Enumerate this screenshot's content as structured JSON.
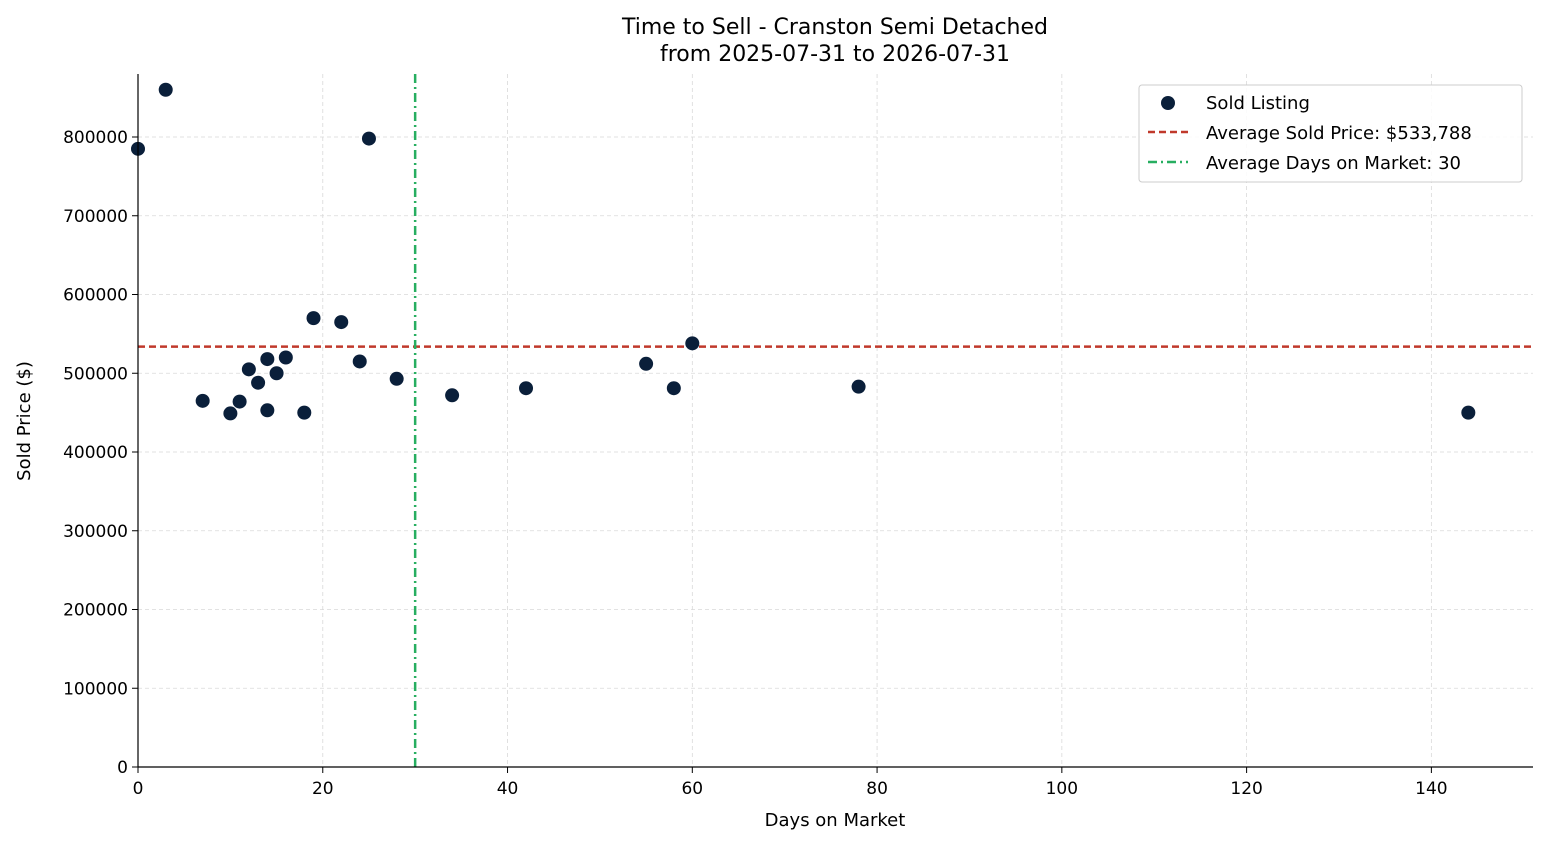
{
  "chart_data": {
    "type": "scatter",
    "title": "Time to Sell - Cranston Semi Detached",
    "subtitle": "from 2025-07-31 to 2026-07-31",
    "xlabel": "Days on Market",
    "ylabel": "Sold Price ($)",
    "xlim": [
      0,
      151
    ],
    "ylim": [
      0,
      880000
    ],
    "x_ticks": [
      0,
      20,
      40,
      60,
      80,
      100,
      120,
      140
    ],
    "y_ticks": [
      0,
      100000,
      200000,
      300000,
      400000,
      500000,
      600000,
      700000,
      800000
    ],
    "grid": true,
    "legend_position": "top-right",
    "colors": {
      "points": "#0a1f3a",
      "avg_price_line": "#c0392b",
      "avg_days_line": "#27ae60"
    },
    "series": [
      {
        "name": "Sold Listing",
        "points": [
          {
            "x": 0,
            "y": 785000
          },
          {
            "x": 3,
            "y": 860000
          },
          {
            "x": 7,
            "y": 465000
          },
          {
            "x": 10,
            "y": 449000
          },
          {
            "x": 11,
            "y": 464000
          },
          {
            "x": 12,
            "y": 505000
          },
          {
            "x": 13,
            "y": 488000
          },
          {
            "x": 14,
            "y": 453000
          },
          {
            "x": 14,
            "y": 518000
          },
          {
            "x": 15,
            "y": 500000
          },
          {
            "x": 16,
            "y": 520000
          },
          {
            "x": 18,
            "y": 450000
          },
          {
            "x": 19,
            "y": 570000
          },
          {
            "x": 22,
            "y": 565000
          },
          {
            "x": 24,
            "y": 515000
          },
          {
            "x": 25,
            "y": 798000
          },
          {
            "x": 28,
            "y": 493000
          },
          {
            "x": 34,
            "y": 472000
          },
          {
            "x": 42,
            "y": 481000
          },
          {
            "x": 55,
            "y": 512000
          },
          {
            "x": 58,
            "y": 481000
          },
          {
            "x": 60,
            "y": 538000
          },
          {
            "x": 78,
            "y": 483000
          },
          {
            "x": 144,
            "y": 450000
          }
        ]
      }
    ],
    "reference_lines": [
      {
        "name": "Average Sold Price: $533,788",
        "orientation": "horizontal",
        "value": 533788
      },
      {
        "name": "Average Days on Market: 30",
        "orientation": "vertical",
        "value": 30
      }
    ]
  }
}
